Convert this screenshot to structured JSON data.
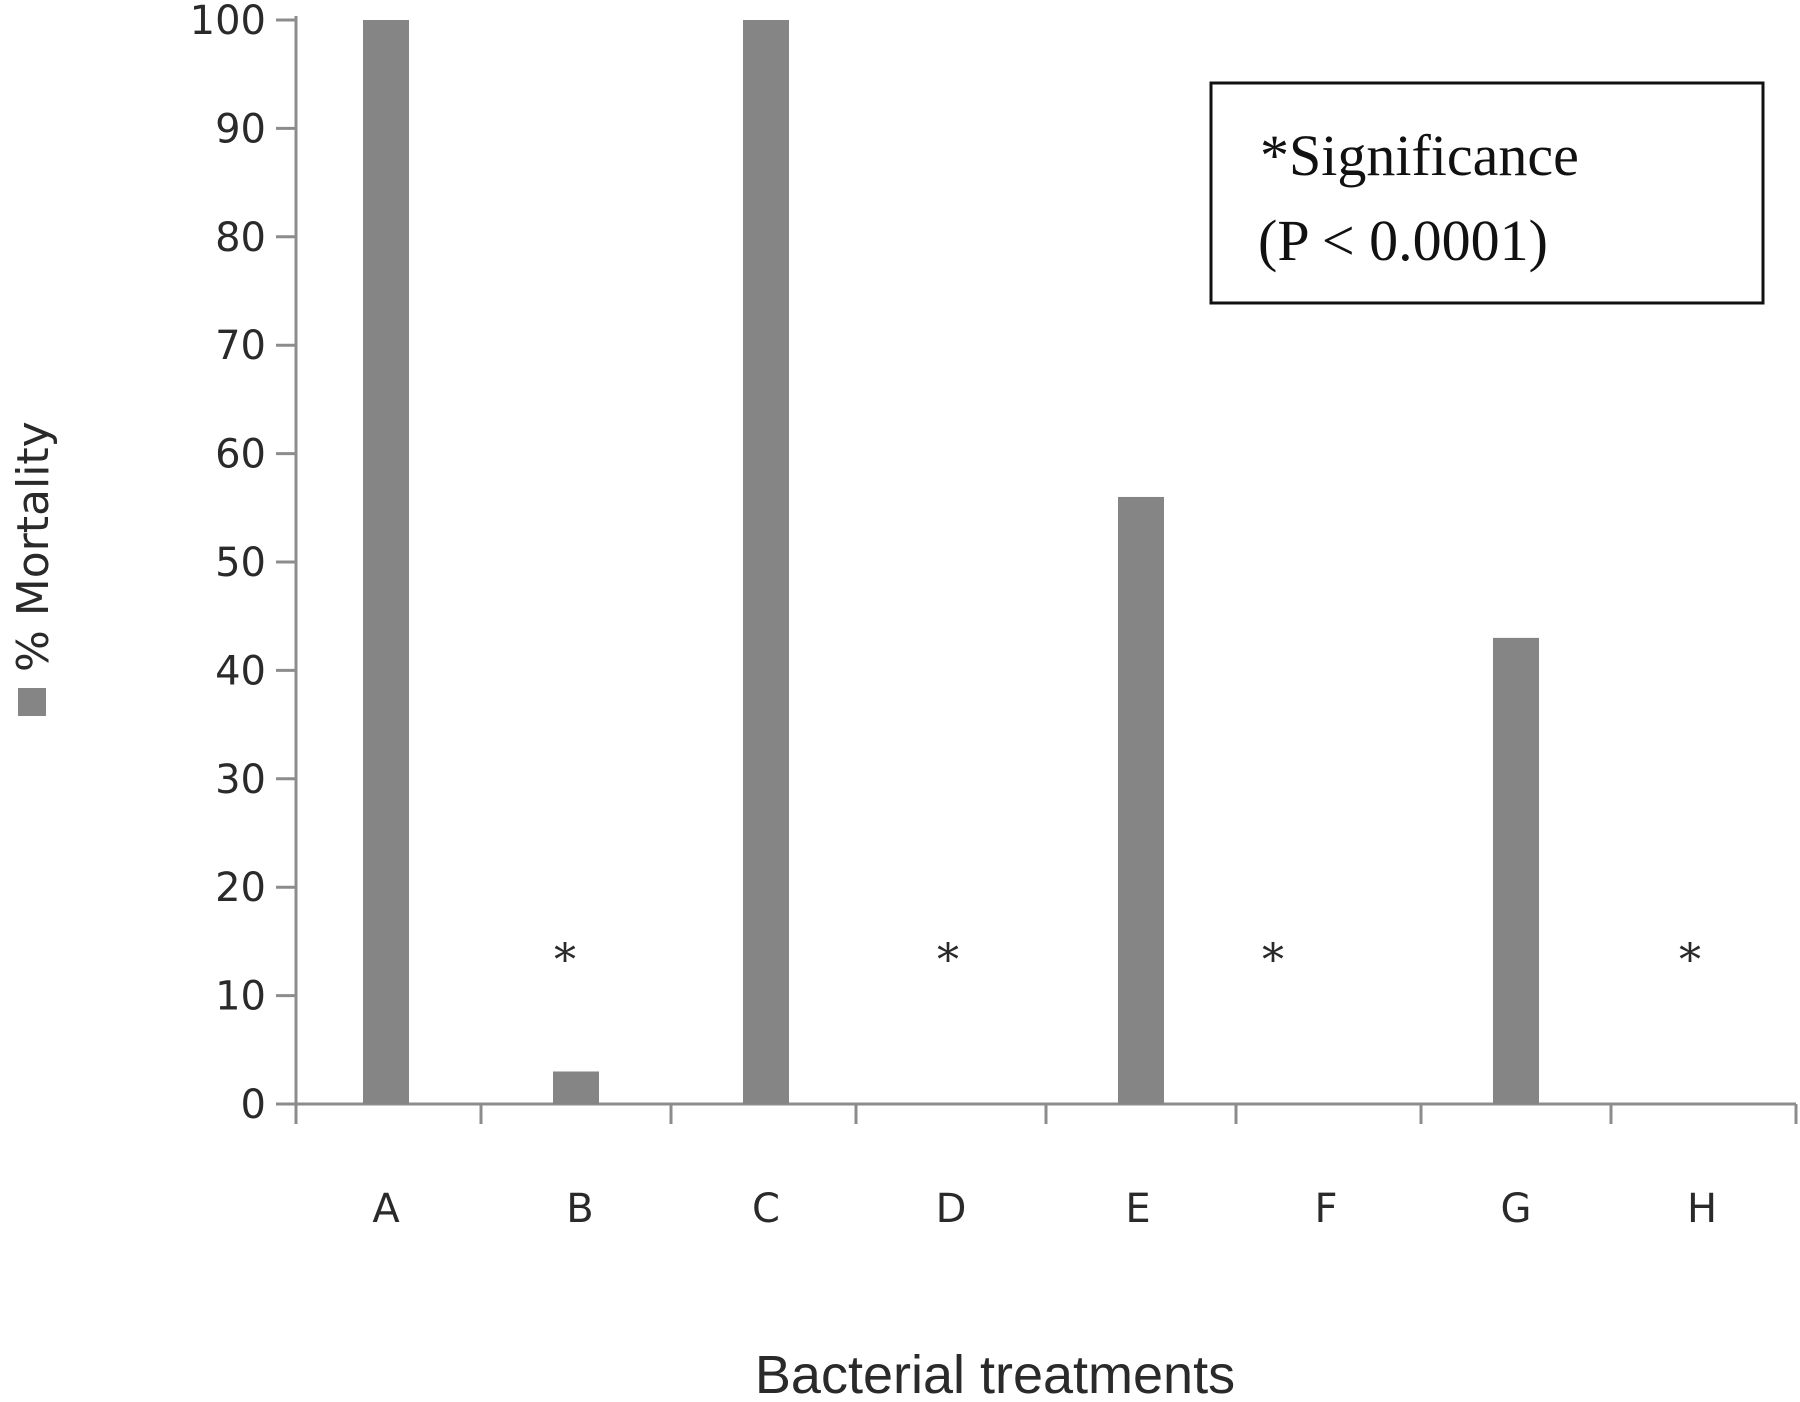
{
  "chart_data": {
    "type": "bar",
    "categories": [
      "A",
      "B",
      "C",
      "D",
      "E",
      "F",
      "G",
      "H"
    ],
    "series": [
      {
        "name": "% Mortality",
        "values": [
          100,
          3,
          100,
          0,
          56,
          0,
          43,
          0
        ]
      }
    ],
    "significant": [
      false,
      true,
      false,
      true,
      false,
      true,
      false,
      true
    ],
    "significance_marker": "*",
    "xlabel": "Bacterial treatments",
    "ylabel": "% Mortality",
    "ylim": [
      0,
      100
    ],
    "yticks": [
      0,
      10,
      20,
      30,
      40,
      50,
      60,
      70,
      80,
      90,
      100
    ],
    "annotation": {
      "line1": "*Significance",
      "line2": "(P < 0.0001)"
    },
    "legend": "left",
    "grid": false,
    "colors": {
      "bar": "#858585",
      "axis": "#8c8c8c",
      "text": "#2a2a2a"
    }
  }
}
